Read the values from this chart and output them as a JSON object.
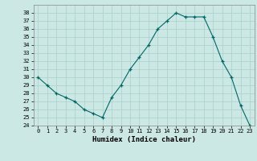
{
  "x": [
    0,
    1,
    2,
    3,
    4,
    5,
    6,
    7,
    8,
    9,
    10,
    11,
    12,
    13,
    14,
    15,
    16,
    17,
    18,
    19,
    20,
    21,
    22,
    23
  ],
  "y": [
    30,
    29,
    28,
    27.5,
    27,
    26,
    25.5,
    25,
    27.5,
    29,
    31,
    32.5,
    34,
    36,
    37,
    38,
    37.5,
    37.5,
    37.5,
    35,
    32,
    30,
    26.5,
    24
  ],
  "line_color": "#006666",
  "marker": "+",
  "bg_color": "#cce8e4",
  "grid_color": "#aacfcc",
  "xlabel": "Humidex (Indice chaleur)",
  "ylim": [
    24,
    39
  ],
  "xlim": [
    -0.5,
    23.5
  ],
  "yticks": [
    24,
    25,
    26,
    27,
    28,
    29,
    30,
    31,
    32,
    33,
    34,
    35,
    36,
    37,
    38
  ],
  "xticks": [
    0,
    1,
    2,
    3,
    4,
    5,
    6,
    7,
    8,
    9,
    10,
    11,
    12,
    13,
    14,
    15,
    16,
    17,
    18,
    19,
    20,
    21,
    22,
    23
  ],
  "xtick_labels": [
    "0",
    "1",
    "2",
    "3",
    "4",
    "5",
    "6",
    "7",
    "8",
    "9",
    "10",
    "11",
    "12",
    "13",
    "14",
    "15",
    "16",
    "17",
    "18",
    "19",
    "20",
    "21",
    "22",
    "23"
  ]
}
